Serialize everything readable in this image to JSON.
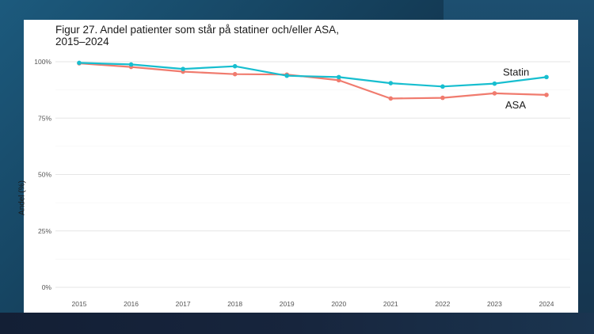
{
  "chart_data": {
    "type": "line",
    "title": "Figur 27. Andel patienter som står på statiner och/eller ASA, 2015–2024",
    "title_lines": [
      "Figur 27. Andel patienter som står på statiner och/eller ASA,",
      "2015–2024"
    ],
    "xlabel": "",
    "ylabel": "Andel (%)",
    "x": [
      "2015",
      "2016",
      "2017",
      "2018",
      "2019",
      "2020",
      "2021",
      "2022",
      "2023",
      "2024"
    ],
    "ylim": [
      0,
      100
    ],
    "yticks": [
      0,
      25,
      50,
      75,
      100
    ],
    "ytick_labels": [
      "0%",
      "25%",
      "50%",
      "75%",
      "100%"
    ],
    "grid": true,
    "legend": "direct-labels at line end",
    "series": [
      {
        "name": "Statin",
        "color": "#17becf",
        "values": [
          99.5,
          98.8,
          96.8,
          98.0,
          93.8,
          93.2,
          90.5,
          89.0,
          90.3,
          93.2
        ]
      },
      {
        "name": "ASA",
        "color": "#f07b6e",
        "values": [
          99.3,
          97.7,
          95.6,
          94.5,
          94.3,
          91.8,
          83.7,
          84.0,
          86.0,
          85.3
        ]
      }
    ]
  }
}
